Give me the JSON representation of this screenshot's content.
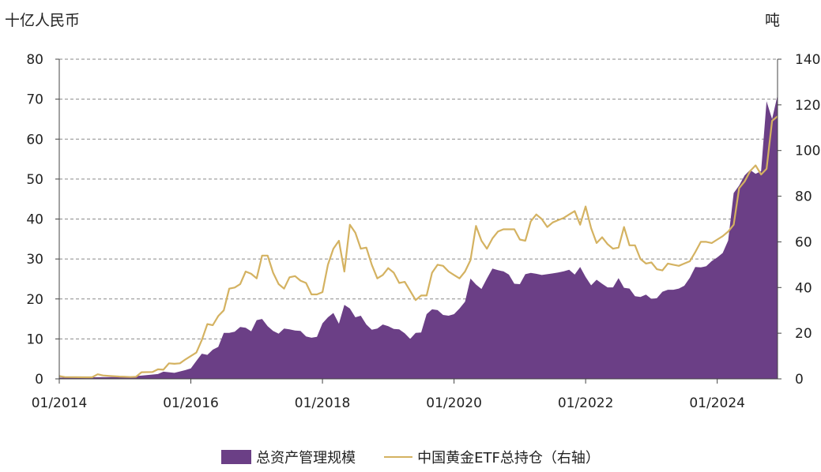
{
  "chart_data": {
    "type": "area",
    "left_axis_unit": "十亿人民币",
    "right_axis_unit": "吨",
    "xlim": [
      "2014-01",
      "2024-12"
    ],
    "x_ticks": [
      "01/2014",
      "01/2016",
      "01/2018",
      "01/2020",
      "01/2022",
      "01/2024"
    ],
    "ylim": [
      0,
      80
    ],
    "y_ticks": [
      0,
      10,
      20,
      30,
      40,
      50,
      60,
      70,
      80
    ],
    "y2lim": [
      0,
      140
    ],
    "y2_ticks": [
      0,
      20,
      40,
      60,
      80,
      100,
      120,
      140
    ],
    "grid": "horizontal-dashed",
    "legend_position": "bottom",
    "series": [
      {
        "name": "总资产管理规模",
        "type": "area",
        "axis": "left",
        "color": "#6b3f86",
        "points": [
          [
            "2014-01",
            0.3
          ],
          [
            "2014-07",
            0.4
          ],
          [
            "2015-01",
            0.5
          ],
          [
            "2015-04",
            0.8
          ],
          [
            "2015-07",
            1.2
          ],
          [
            "2015-08",
            1.8
          ],
          [
            "2015-10",
            1.5
          ],
          [
            "2015-12",
            2.2
          ],
          [
            "2016-01",
            2.6
          ],
          [
            "2016-02",
            4.5
          ],
          [
            "2016-03",
            6.3
          ],
          [
            "2016-04",
            6.0
          ],
          [
            "2016-05",
            7.3
          ],
          [
            "2016-06",
            8.0
          ],
          [
            "2016-07",
            11.5
          ],
          [
            "2016-08",
            11.5
          ],
          [
            "2016-09",
            11.8
          ],
          [
            "2016-10",
            13.0
          ],
          [
            "2016-11",
            12.8
          ],
          [
            "2016-12",
            11.9
          ],
          [
            "2017-01",
            14.7
          ],
          [
            "2017-02",
            15.0
          ],
          [
            "2017-03",
            13.2
          ],
          [
            "2017-04",
            12.0
          ],
          [
            "2017-05",
            11.3
          ],
          [
            "2017-06",
            12.6
          ],
          [
            "2017-07",
            12.4
          ],
          [
            "2017-08",
            12.1
          ],
          [
            "2017-09",
            12.0
          ],
          [
            "2017-10",
            10.6
          ],
          [
            "2017-11",
            10.3
          ],
          [
            "2017-12",
            10.5
          ],
          [
            "2018-01",
            13.9
          ],
          [
            "2018-02",
            15.4
          ],
          [
            "2018-03",
            16.5
          ],
          [
            "2018-04",
            13.8
          ],
          [
            "2018-05",
            18.5
          ],
          [
            "2018-06",
            17.6
          ],
          [
            "2018-07",
            15.4
          ],
          [
            "2018-08",
            15.8
          ],
          [
            "2018-09",
            13.6
          ],
          [
            "2018-10",
            12.3
          ],
          [
            "2018-11",
            12.6
          ],
          [
            "2018-12",
            13.6
          ],
          [
            "2019-01",
            13.2
          ],
          [
            "2019-02",
            12.5
          ],
          [
            "2019-03",
            12.4
          ],
          [
            "2019-04",
            11.4
          ],
          [
            "2019-05",
            10.0
          ],
          [
            "2019-06",
            11.5
          ],
          [
            "2019-07",
            11.6
          ],
          [
            "2019-08",
            16.2
          ],
          [
            "2019-09",
            17.4
          ],
          [
            "2019-10",
            17.2
          ],
          [
            "2019-11",
            16.0
          ],
          [
            "2019-12",
            15.8
          ],
          [
            "2020-01",
            16.2
          ],
          [
            "2020-02",
            17.6
          ],
          [
            "2020-03",
            19.3
          ],
          [
            "2020-04",
            25.1
          ],
          [
            "2020-05",
            23.6
          ],
          [
            "2020-06",
            22.5
          ],
          [
            "2020-07",
            25.1
          ],
          [
            "2020-08",
            27.6
          ],
          [
            "2020-09",
            27.2
          ],
          [
            "2020-10",
            26.9
          ],
          [
            "2020-11",
            26.1
          ],
          [
            "2020-12",
            23.8
          ],
          [
            "2021-01",
            23.7
          ],
          [
            "2021-02",
            26.2
          ],
          [
            "2021-03",
            26.5
          ],
          [
            "2021-04",
            26.3
          ],
          [
            "2021-05",
            26.0
          ],
          [
            "2021-06",
            26.2
          ],
          [
            "2021-07",
            26.4
          ],
          [
            "2021-08",
            26.6
          ],
          [
            "2021-09",
            26.9
          ],
          [
            "2021-10",
            27.3
          ],
          [
            "2021-11",
            26.1
          ],
          [
            "2021-12",
            28.0
          ],
          [
            "2022-01",
            25.5
          ],
          [
            "2022-02",
            23.4
          ],
          [
            "2022-03",
            24.8
          ],
          [
            "2022-04",
            23.8
          ],
          [
            "2022-05",
            22.9
          ],
          [
            "2022-06",
            22.9
          ],
          [
            "2022-07",
            25.2
          ],
          [
            "2022-08",
            22.8
          ],
          [
            "2022-09",
            22.6
          ],
          [
            "2022-10",
            20.7
          ],
          [
            "2022-11",
            20.5
          ],
          [
            "2022-12",
            21.1
          ],
          [
            "2023-01",
            20.0
          ],
          [
            "2023-02",
            20.2
          ],
          [
            "2023-03",
            21.8
          ],
          [
            "2023-04",
            22.3
          ],
          [
            "2023-05",
            22.3
          ],
          [
            "2023-06",
            22.6
          ],
          [
            "2023-07",
            23.3
          ],
          [
            "2023-08",
            25.3
          ],
          [
            "2023-09",
            28.0
          ],
          [
            "2023-10",
            27.9
          ],
          [
            "2023-11",
            28.2
          ],
          [
            "2023-12",
            29.5
          ],
          [
            "2024-01",
            30.4
          ],
          [
            "2024-02",
            31.5
          ],
          [
            "2024-03",
            34.6
          ],
          [
            "2024-04",
            46.5
          ],
          [
            "2024-05",
            48.4
          ],
          [
            "2024-06",
            50.9
          ],
          [
            "2024-07",
            52.3
          ],
          [
            "2024-08",
            51.3
          ],
          [
            "2024-09",
            52.0
          ],
          [
            "2024-10",
            69.5
          ],
          [
            "2024-11",
            65.0
          ],
          [
            "2024-12",
            71.0
          ]
        ]
      },
      {
        "name": "中国黄金ETF总持仓（右轴）",
        "type": "line",
        "axis": "right",
        "color": "#d4b261",
        "points": [
          [
            "2014-01",
            1.2
          ],
          [
            "2014-02",
            0.8
          ],
          [
            "2014-06",
            0.7
          ],
          [
            "2014-07",
            0.7
          ],
          [
            "2014-08",
            2.0
          ],
          [
            "2014-09",
            1.5
          ],
          [
            "2014-10",
            1.3
          ],
          [
            "2014-12",
            1.0
          ],
          [
            "2015-01",
            0.9
          ],
          [
            "2015-02",
            0.8
          ],
          [
            "2015-03",
            0.9
          ],
          [
            "2015-04",
            2.9
          ],
          [
            "2015-06",
            3.0
          ],
          [
            "2015-07",
            4.2
          ],
          [
            "2015-08",
            4.0
          ],
          [
            "2015-09",
            6.8
          ],
          [
            "2015-10",
            6.6
          ],
          [
            "2015-11",
            6.8
          ],
          [
            "2015-12",
            8.5
          ],
          [
            "2016-01",
            10.0
          ],
          [
            "2016-02",
            11.5
          ],
          [
            "2016-03",
            17.0
          ],
          [
            "2016-04",
            24.0
          ],
          [
            "2016-05",
            23.5
          ],
          [
            "2016-06",
            27.5
          ],
          [
            "2016-07",
            30.0
          ],
          [
            "2016-08",
            39.5
          ],
          [
            "2016-09",
            40.0
          ],
          [
            "2016-10",
            41.5
          ],
          [
            "2016-11",
            47.0
          ],
          [
            "2016-12",
            46.0
          ],
          [
            "2017-01",
            44.0
          ],
          [
            "2017-02",
            54.0
          ],
          [
            "2017-03",
            54.0
          ],
          [
            "2017-04",
            46.5
          ],
          [
            "2017-05",
            41.5
          ],
          [
            "2017-06",
            39.5
          ],
          [
            "2017-07",
            44.5
          ],
          [
            "2017-08",
            45.0
          ],
          [
            "2017-09",
            43.0
          ],
          [
            "2017-10",
            42.0
          ],
          [
            "2017-11",
            37.0
          ],
          [
            "2017-12",
            37.0
          ],
          [
            "2018-01",
            38.0
          ],
          [
            "2018-02",
            50.0
          ],
          [
            "2018-03",
            57.0
          ],
          [
            "2018-04",
            60.5
          ],
          [
            "2018-05",
            47.0
          ],
          [
            "2018-06",
            67.5
          ],
          [
            "2018-07",
            64.0
          ],
          [
            "2018-08",
            57.0
          ],
          [
            "2018-09",
            57.5
          ],
          [
            "2018-10",
            50.0
          ],
          [
            "2018-11",
            44.0
          ],
          [
            "2018-12",
            45.5
          ],
          [
            "2019-01",
            48.5
          ],
          [
            "2019-02",
            46.5
          ],
          [
            "2019-03",
            42.0
          ],
          [
            "2019-04",
            42.5
          ],
          [
            "2019-05",
            38.5
          ],
          [
            "2019-06",
            34.5
          ],
          [
            "2019-07",
            36.5
          ],
          [
            "2019-08",
            36.5
          ],
          [
            "2019-09",
            46.5
          ],
          [
            "2019-10",
            50.0
          ],
          [
            "2019-11",
            49.5
          ],
          [
            "2019-12",
            47.0
          ],
          [
            "2020-01",
            45.5
          ],
          [
            "2020-02",
            44.0
          ],
          [
            "2020-03",
            47.0
          ],
          [
            "2020-04",
            52.0
          ],
          [
            "2020-05",
            67.0
          ],
          [
            "2020-06",
            60.5
          ],
          [
            "2020-07",
            57.0
          ],
          [
            "2020-08",
            61.5
          ],
          [
            "2020-09",
            64.5
          ],
          [
            "2020-10",
            65.5
          ],
          [
            "2020-11",
            65.5
          ],
          [
            "2020-12",
            65.5
          ],
          [
            "2021-01",
            61.0
          ],
          [
            "2021-02",
            60.5
          ],
          [
            "2021-03",
            69.0
          ],
          [
            "2021-04",
            72.0
          ],
          [
            "2021-05",
            70.0
          ],
          [
            "2021-06",
            66.5
          ],
          [
            "2021-07",
            68.5
          ],
          [
            "2021-08",
            69.5
          ],
          [
            "2021-09",
            70.5
          ],
          [
            "2021-10",
            72.0
          ],
          [
            "2021-11",
            73.5
          ],
          [
            "2021-12",
            67.5
          ],
          [
            "2022-01",
            75.5
          ],
          [
            "2022-02",
            66.0
          ],
          [
            "2022-03",
            59.5
          ],
          [
            "2022-04",
            62.0
          ],
          [
            "2022-05",
            59.0
          ],
          [
            "2022-06",
            57.0
          ],
          [
            "2022-07",
            57.5
          ],
          [
            "2022-08",
            66.5
          ],
          [
            "2022-09",
            58.5
          ],
          [
            "2022-10",
            58.5
          ],
          [
            "2022-11",
            52.5
          ],
          [
            "2022-12",
            50.5
          ],
          [
            "2023-01",
            51.0
          ],
          [
            "2023-02",
            48.0
          ],
          [
            "2023-03",
            47.5
          ],
          [
            "2023-04",
            50.5
          ],
          [
            "2023-05",
            50.0
          ],
          [
            "2023-06",
            49.5
          ],
          [
            "2023-07",
            50.5
          ],
          [
            "2023-08",
            51.5
          ],
          [
            "2023-09",
            55.5
          ],
          [
            "2023-10",
            60.0
          ],
          [
            "2023-11",
            60.0
          ],
          [
            "2023-12",
            59.5
          ],
          [
            "2024-01",
            61.0
          ],
          [
            "2024-02",
            62.5
          ],
          [
            "2024-03",
            64.5
          ],
          [
            "2024-04",
            67.5
          ],
          [
            "2024-05",
            83.5
          ],
          [
            "2024-06",
            86.5
          ],
          [
            "2024-07",
            91.0
          ],
          [
            "2024-08",
            93.5
          ],
          [
            "2024-09",
            89.5
          ],
          [
            "2024-10",
            92.0
          ],
          [
            "2024-11",
            113.0
          ],
          [
            "2024-12",
            115.0
          ]
        ]
      }
    ]
  }
}
